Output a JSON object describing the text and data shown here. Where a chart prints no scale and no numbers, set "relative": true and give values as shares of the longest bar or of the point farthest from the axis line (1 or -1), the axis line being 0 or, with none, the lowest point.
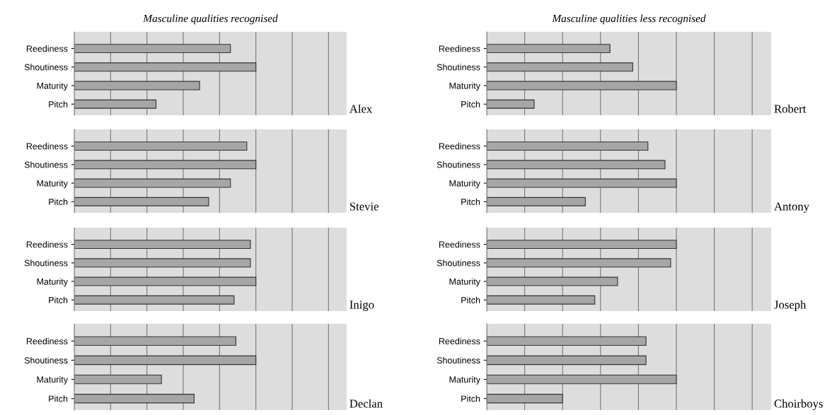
{
  "chart_data": [
    {
      "type": "bar",
      "orientation": "horizontal",
      "relative": true,
      "title": "Masculine qualities recognised",
      "annotations": [
        "Alex"
      ],
      "categories": [
        "Reediness",
        "Shoutiness",
        "Maturity",
        "Pitch"
      ],
      "values": [
        0.86,
        1,
        0.69,
        0.45
      ],
      "color": "#a6a6a6",
      "grid": "x",
      "tick_labels": "y"
    },
    {
      "type": "bar",
      "orientation": "horizontal",
      "relative": true,
      "title": "Masculine qualities less recognised",
      "annotations": [
        "Robert"
      ],
      "categories": [
        "Reediness",
        "Shoutiness",
        "Maturity",
        "Pitch"
      ],
      "values": [
        0.65,
        0.77,
        1,
        0.25
      ],
      "color": "#a6a6a6",
      "grid": "x",
      "tick_labels": "y"
    },
    {
      "type": "bar",
      "orientation": "horizontal",
      "relative": true,
      "annotations": [
        "Stevie"
      ],
      "categories": [
        "Reediness",
        "Shoutiness",
        "Maturity",
        "Pitch"
      ],
      "values": [
        0.95,
        1,
        0.86,
        0.74
      ],
      "color": "#a6a6a6",
      "grid": "x",
      "tick_labels": "y"
    },
    {
      "type": "bar",
      "orientation": "horizontal",
      "relative": true,
      "annotations": [
        "Antony"
      ],
      "categories": [
        "Reediness",
        "Shoutiness",
        "Maturity",
        "Pitch"
      ],
      "values": [
        0.85,
        0.94,
        1,
        0.52
      ],
      "color": "#a6a6a6",
      "grid": "x",
      "tick_labels": "y"
    },
    {
      "type": "bar",
      "orientation": "horizontal",
      "relative": true,
      "annotations": [
        "Inigo"
      ],
      "categories": [
        "Reediness",
        "Shoutiness",
        "Maturity",
        "Pitch"
      ],
      "values": [
        0.97,
        0.97,
        1,
        0.88
      ],
      "color": "#a6a6a6",
      "grid": "x",
      "tick_labels": "y"
    },
    {
      "type": "bar",
      "orientation": "horizontal",
      "relative": true,
      "annotations": [
        "Joseph"
      ],
      "categories": [
        "Reediness",
        "Shoutiness",
        "Maturity",
        "Pitch"
      ],
      "values": [
        1,
        0.97,
        0.69,
        0.57
      ],
      "color": "#a6a6a6",
      "grid": "x",
      "tick_labels": "y"
    },
    {
      "type": "bar",
      "orientation": "horizontal",
      "relative": true,
      "annotations": [
        "Declan"
      ],
      "categories": [
        "Reediness",
        "Shoutiness",
        "Maturity",
        "Pitch"
      ],
      "values": [
        0.89,
        1,
        0.48,
        0.66
      ],
      "color": "#a6a6a6",
      "grid": "x",
      "tick_labels": "y"
    },
    {
      "type": "bar",
      "orientation": "horizontal",
      "relative": true,
      "annotations": [
        "Choirboys"
      ],
      "categories": [
        "Reediness",
        "Shoutiness",
        "Maturity",
        "Pitch"
      ],
      "values": [
        0.84,
        0.84,
        1,
        0.4
      ],
      "color": "#a6a6a6",
      "grid": "x",
      "tick_labels": "y"
    }
  ]
}
